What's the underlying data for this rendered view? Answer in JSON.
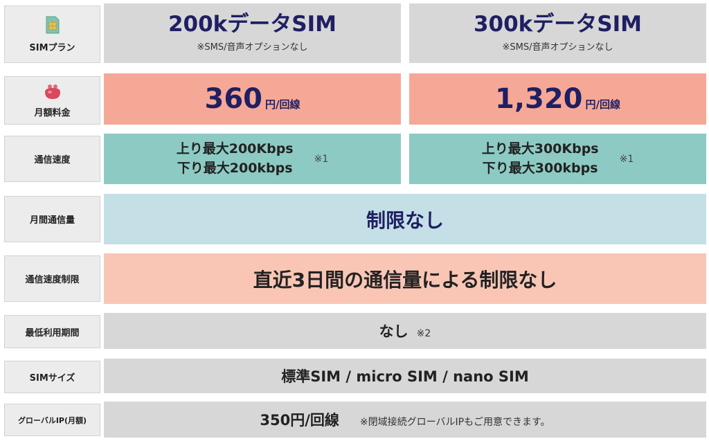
{
  "colors": {
    "navy": "#1f1f63",
    "gray": "#d7d7d7",
    "salmon": "#f6a896",
    "teal": "#8dcac3",
    "lightblue": "#c4dfe5",
    "peach": "#f9c6b6",
    "label_bg": "#ececec"
  },
  "icons": {
    "sim": "sim-card-icon",
    "money": "coin-purse-icon"
  },
  "labels": {
    "sim_plan": "SIMプラン",
    "monthly_fee": "月額料金",
    "speed": "通信速度",
    "monthly_data": "月間通信量",
    "speed_limit": "通信速度制限",
    "min_period": "最低利用期間",
    "sim_size": "SIMサイズ",
    "global_ip": "グローバルIP(月額)"
  },
  "plans": [
    {
      "title": "200kデータSIM",
      "subtitle": "※SMS/音声オプションなし",
      "price": "360",
      "price_unit": "円/回線",
      "speed_up": "上り最大200Kbps",
      "speed_down": "下り最大200kbps",
      "speed_note": "※1"
    },
    {
      "title": "300kデータSIM",
      "subtitle": "※SMS/音声オプションなし",
      "price": "1,320",
      "price_unit": "円/回線",
      "speed_up": "上り最大300Kbps",
      "speed_down": "下り最大300kbps",
      "speed_note": "※1"
    }
  ],
  "shared": {
    "monthly_data": "制限なし",
    "speed_limit": "直近3日間の通信量による制限なし",
    "min_period": "なし",
    "min_period_note": "※2",
    "sim_size": "標準SIM / micro SIM / nano SIM",
    "global_ip_price": "350円/回線",
    "global_ip_note": "※閉域接続グローバルIPもご用意できます。"
  }
}
